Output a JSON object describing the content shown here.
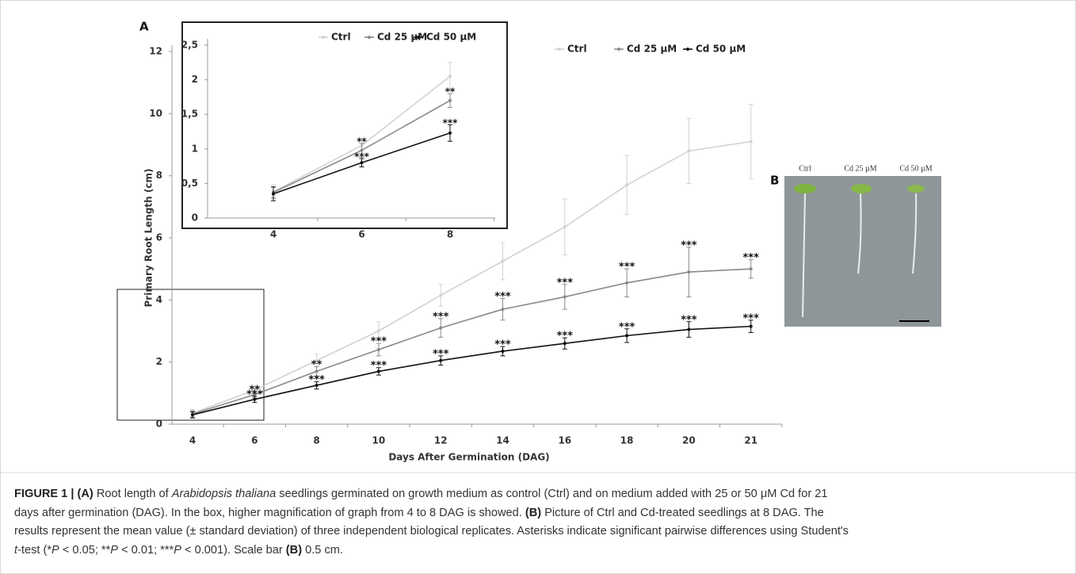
{
  "chart_data": [
    {
      "type": "line",
      "xlabel": "Days After Germination (DAG)",
      "ylabel": "Primary Root Length (cm)",
      "categories": [
        4,
        6,
        8,
        10,
        12,
        14,
        16,
        18,
        20,
        21
      ],
      "ylim": [
        0,
        12
      ],
      "yticks": [
        0,
        2,
        4,
        6,
        8,
        10,
        12
      ],
      "series": [
        {
          "name": "Ctrl",
          "color": "#d2d2d2",
          "values": [
            0.35,
            1.1,
            2.05,
            3.0,
            4.15,
            5.25,
            6.35,
            7.7,
            8.8,
            9.1
          ],
          "errors": [
            0.12,
            0.12,
            0.2,
            0.3,
            0.35,
            0.6,
            0.9,
            0.95,
            1.05,
            1.2
          ],
          "annotations": [
            null,
            null,
            null,
            null,
            null,
            null,
            null,
            null,
            null,
            null
          ]
        },
        {
          "name": "Cd 25 µM",
          "color": "#8a8a8a",
          "values": [
            0.33,
            0.95,
            1.7,
            2.4,
            3.1,
            3.7,
            4.1,
            4.55,
            4.9,
            5.0
          ],
          "errors": [
            0.1,
            0.1,
            0.15,
            0.2,
            0.3,
            0.35,
            0.4,
            0.45,
            0.8,
            0.3
          ],
          "annotations": [
            null,
            "**",
            "**",
            "***",
            "***",
            "***",
            "***",
            "***",
            "***",
            "***"
          ]
        },
        {
          "name": "Cd 50 µM",
          "color": "#111111",
          "values": [
            0.3,
            0.8,
            1.25,
            1.7,
            2.05,
            2.35,
            2.6,
            2.85,
            3.05,
            3.15
          ],
          "errors": [
            0.1,
            0.1,
            0.12,
            0.12,
            0.15,
            0.15,
            0.18,
            0.22,
            0.25,
            0.2
          ],
          "annotations": [
            null,
            "***",
            "***",
            "***",
            "***",
            "***",
            "***",
            "***",
            "***",
            "***"
          ]
        }
      ]
    },
    {
      "type": "line",
      "categories": [
        4,
        6,
        8
      ],
      "ylim": [
        0,
        2.5
      ],
      "yticks": [
        0,
        {
          "value": 0.5,
          "label": "0,5"
        },
        1,
        {
          "value": 1.5,
          "label": "1,5"
        },
        2,
        {
          "value": 2.5,
          "label": "2,5"
        }
      ],
      "series": [
        {
          "name": "Ctrl",
          "color": "#d2d2d2",
          "values": [
            0.38,
            1.05,
            2.05
          ],
          "errors": [
            0.1,
            0.1,
            0.2
          ],
          "annotations": [
            null,
            null,
            null
          ]
        },
        {
          "name": "Cd 25 µM",
          "color": "#8a8a8a",
          "values": [
            0.37,
            0.98,
            1.7
          ],
          "errors": [
            0.08,
            0.1,
            0.1
          ],
          "annotations": [
            null,
            "**",
            "**"
          ]
        },
        {
          "name": "Cd 50 µM",
          "color": "#111111",
          "values": [
            0.35,
            0.8,
            1.23
          ],
          "errors": [
            0.1,
            0.06,
            0.12
          ],
          "annotations": [
            null,
            "***",
            "***"
          ]
        }
      ]
    }
  ],
  "panel_labels": [
    "A",
    "B"
  ],
  "photo": {
    "labels": [
      "Ctrl",
      "Cd 25 µM",
      "Cd 50 µM"
    ]
  },
  "caption": {
    "lines": [
      [
        "FIGURE 1 | (A)",
        " Root length of ",
        "Arabidopsis thaliana",
        " seedlings germinated on growth medium as control (Ctrl) and on medium added with 25 or 50 μM Cd for 21"
      ],
      [
        "days after germination (DAG). In the box, higher magnification of graph from 4 to 8 DAG is showed. ",
        "(B)",
        " Picture of Ctrl and Cd-treated seedlings at 8 DAG. The"
      ],
      [
        "results represent the mean value (± standard deviation) of three independent biological replicates. Asterisks indicate significant pairwise differences using Student's"
      ],
      [
        "t",
        "-test (*",
        "P",
        " < 0.05; **",
        "P",
        " < 0.01; ***",
        "P",
        " < 0.001). Scale bar ",
        "(B)",
        " 0.5 cm."
      ]
    ]
  }
}
